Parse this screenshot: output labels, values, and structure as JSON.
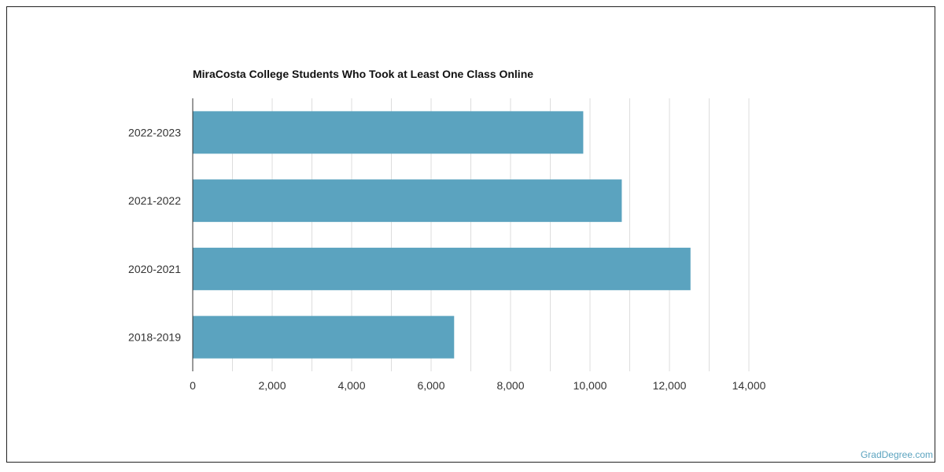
{
  "chart_data": {
    "type": "bar",
    "orientation": "horizontal",
    "title": "MiraCosta College Students Who Took at Least One Class Online",
    "xlabel": "",
    "ylabel": "",
    "categories": [
      "2022-2023",
      "2021-2022",
      "2020-2021",
      "2018-2019"
    ],
    "values": [
      9830,
      10800,
      12530,
      6580
    ],
    "xlim": [
      0,
      14000
    ],
    "x_ticks": [
      0,
      2000,
      4000,
      6000,
      8000,
      10000,
      12000,
      14000
    ],
    "x_tick_labels": [
      "0",
      "2,000",
      "4,000",
      "6,000",
      "8,000",
      "10,000",
      "12,000",
      "14,000"
    ],
    "grid": true,
    "bar_color": "#5ba3bf",
    "grid_color": "#dddddd",
    "axis_color": "#333333"
  },
  "watermark": {
    "text": "GradDegree.com",
    "color": "#5ba3bf"
  }
}
